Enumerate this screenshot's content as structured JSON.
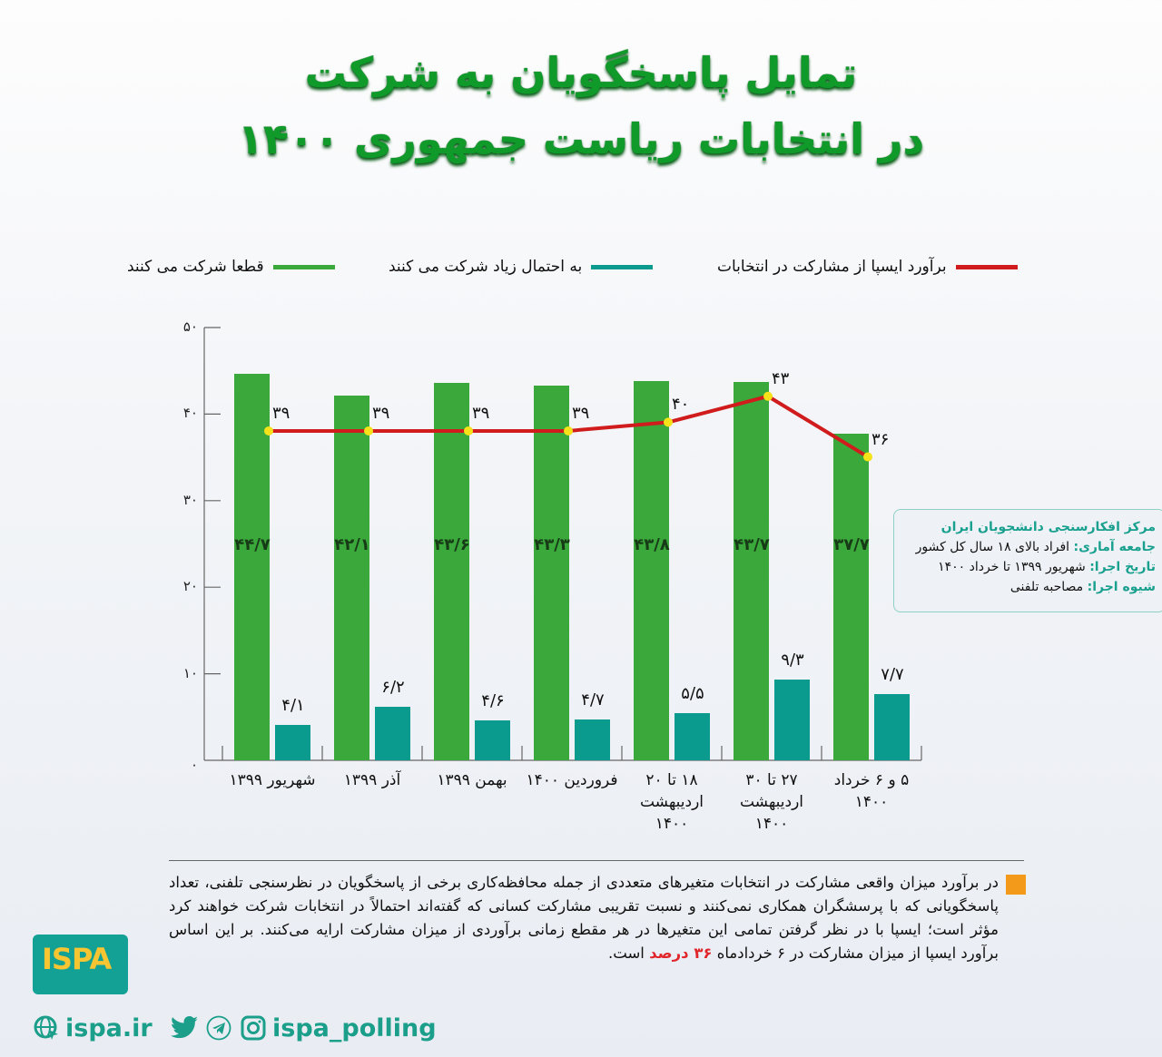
{
  "title": {
    "line1": "تمایل پاسخگویان به شرکت",
    "line2": "در انتخابات ریاست جمهوری ۱۴۰۰"
  },
  "legend": {
    "estimate": {
      "label": "برآورد ایسپا از مشارکت در انتخابات",
      "color": "#d01c1c"
    },
    "likely": {
      "label": "به احتمال زیاد شرکت می کنند",
      "color": "#0b9a8e"
    },
    "definitely": {
      "label": "قطعا شرکت می کنند",
      "color": "#3aa83a"
    }
  },
  "y_ticks": [
    "۰",
    "۱۰",
    "۲۰",
    "۳۰",
    "۴۰",
    "۵۰"
  ],
  "bars": [
    {
      "green_label": "۴۴/۷",
      "teal_label": "۴/۱",
      "line_label": "۳۹",
      "x_label": [
        "شهریور ۱۳۹۹"
      ]
    },
    {
      "green_label": "۴۲/۱",
      "teal_label": "۶/۲",
      "line_label": "۳۹",
      "x_label": [
        "آذر ۱۳۹۹"
      ]
    },
    {
      "green_label": "۴۳/۶",
      "teal_label": "۴/۶",
      "line_label": "۳۹",
      "x_label": [
        "بهمن ۱۳۹۹"
      ]
    },
    {
      "green_label": "۴۳/۳",
      "teal_label": "۴/۷",
      "line_label": "۳۹",
      "x_label": [
        "فروردین ۱۴۰۰"
      ]
    },
    {
      "green_label": "۴۳/۸",
      "teal_label": "۵/۵",
      "line_label": "۴۰",
      "x_label": [
        "۱۸ تا ۲۰",
        "اردیبهشت",
        "۱۴۰۰"
      ]
    },
    {
      "green_label": "۴۳/۷",
      "teal_label": "۹/۳",
      "line_label": "۴۳",
      "x_label": [
        "۲۷ تا ۳۰",
        "اردیبهشت",
        "۱۴۰۰"
      ]
    },
    {
      "green_label": "۳۷/۷",
      "teal_label": "۷/۷",
      "line_label": "۳۶",
      "x_label": [
        "۵ و ۶ خرداد",
        "۱۴۰۰"
      ]
    }
  ],
  "infobox": {
    "org": "مرکز افکارسنجی دانشجویان ایران",
    "population_key": "جامعه آماری:",
    "population_val": "افراد بالای ۱۸ سال کل کشور",
    "date_key": "تاریخ اجرا:",
    "date_val": "شهریور ۱۳۹۹ تا خرداد ۱۴۰۰",
    "method_key": "شیوه اجرا:",
    "method_val": "مصاحبه تلفنی"
  },
  "note": {
    "text_before": "در برآورد میزان واقعی مشارکت در انتخابات متغیرهای متعددی از جمله محافظه‌کاری برخی از پاسخگویان در نظرسنجی تلفنی، تعداد پاسخگویانی که با پرسشگران همکاری نمی‌کنند و نسبت تقریبی مشارکت کسانی که گفته‌اند احتمالاً در انتخابات شرکت خواهند کرد مؤثر است؛ ایسپا با در نظر گرفتن تمامی این متغیرها در هر مقطع زمانی برآوردی از میزان مشارکت ارایه می‌کنند. بر این اساس برآورد ایسپا از میزان مشارکت در ۶ خردادماه ",
    "highlight": "۳۶ درصد",
    "text_after": " است."
  },
  "logo": {
    "text": "ISPA"
  },
  "footer": {
    "website": "ispa.ir",
    "handle": "ispa_polling"
  },
  "chart_data": {
    "type": "bar",
    "title": "تمایل پاسخگویان به شرکت در انتخابات ریاست جمهوری ۱۴۰۰",
    "categories": [
      "شهریور ۱۳۹۹",
      "آذر ۱۳۹۹",
      "بهمن ۱۳۹۹",
      "فروردین ۱۴۰۰",
      "۱۸ تا ۲۰ اردیبهشت ۱۴۰۰",
      "۲۷ تا ۳۰ اردیبهشت ۱۴۰۰",
      "۵ و ۶ خرداد ۱۴۰۰"
    ],
    "series": [
      {
        "name": "قطعا شرکت می کنند",
        "type": "bar",
        "color": "#3aa83a",
        "values": [
          44.7,
          42.1,
          43.6,
          43.3,
          43.8,
          43.7,
          37.7
        ]
      },
      {
        "name": "به احتمال زیاد شرکت می کنند",
        "type": "bar",
        "color": "#0b9a8e",
        "values": [
          4.1,
          6.2,
          4.6,
          4.7,
          5.5,
          9.3,
          7.7
        ]
      },
      {
        "name": "برآورد ایسپا از مشارکت در انتخابات",
        "type": "line",
        "color": "#d01c1c",
        "values": [
          39,
          39,
          39,
          39,
          40,
          43,
          36
        ]
      }
    ],
    "xlabel": "",
    "ylabel": "",
    "ylim": [
      0,
      50
    ],
    "yticks": [
      0,
      10,
      20,
      30,
      40,
      50
    ],
    "grid": false,
    "legend_position": "top"
  }
}
